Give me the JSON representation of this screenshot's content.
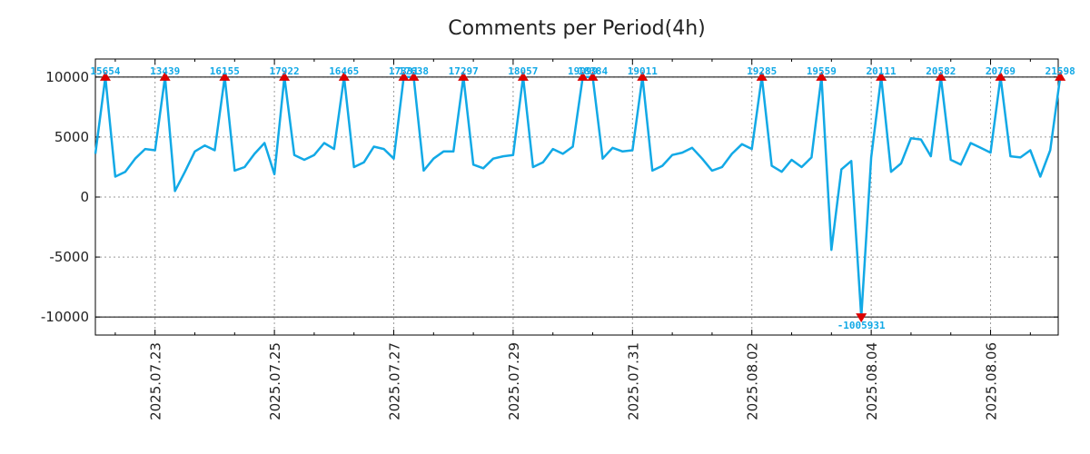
{
  "colors": {
    "line": "#12a9e6",
    "marker": "#dd0000",
    "label": "#12a9e6",
    "grid": "#9a9a9a",
    "axis": "#000000"
  },
  "chart_data": {
    "type": "line",
    "title": "Comments per Period(4h)",
    "xlabel": "",
    "ylabel": "",
    "ylim": [
      -11500,
      11500
    ],
    "xlim": [
      0,
      96.8
    ],
    "y_ticks": [
      {
        "value": 10000,
        "label": "10000"
      },
      {
        "value": 5000,
        "label": "5000"
      },
      {
        "value": 0,
        "label": "0"
      },
      {
        "value": -5000,
        "label": "-5000"
      },
      {
        "value": -10000,
        "label": "-10000"
      }
    ],
    "x_ticks": [
      {
        "index": 6,
        "label": "2025.07.23"
      },
      {
        "index": 18,
        "label": "2025.07.25"
      },
      {
        "index": 30,
        "label": "2025.07.27"
      },
      {
        "index": 42,
        "label": "2025.07.29"
      },
      {
        "index": 54,
        "label": "2025.07.31"
      },
      {
        "index": 66,
        "label": "2025.08.02"
      },
      {
        "index": 78,
        "label": "2025.08.04"
      },
      {
        "index": 90,
        "label": "2025.08.06"
      }
    ],
    "clip_lines": [
      10000,
      -10000
    ],
    "series": [
      {
        "name": "comments",
        "values": [
          3600,
          10000,
          1700,
          2100,
          3200,
          4000,
          3900,
          10000,
          500,
          2100,
          3800,
          4300,
          3900,
          10000,
          2200,
          2500,
          3600,
          4500,
          1900,
          10000,
          3500,
          3100,
          3500,
          4500,
          4000,
          10000,
          2500,
          2900,
          4200,
          4000,
          3200,
          10000,
          10000,
          2200,
          3200,
          3800,
          3800,
          10000,
          2700,
          2400,
          3200,
          3400,
          3500,
          10000,
          2500,
          2900,
          4000,
          3600,
          4200,
          10000,
          10000,
          3200,
          4100,
          3800,
          3900,
          10000,
          2200,
          2600,
          3500,
          3700,
          4100,
          3200,
          2200,
          2500,
          3600,
          4400,
          4000,
          10000,
          2600,
          2100,
          3100,
          2500,
          3300,
          10000,
          -4400,
          2300,
          3000,
          -10000,
          3300,
          10000,
          2100,
          2800,
          4900,
          4800,
          3400,
          10000,
          3100,
          2700,
          4500,
          4100,
          3700,
          10000,
          3400,
          3300,
          3900,
          1700,
          3900,
          10000
        ]
      }
    ],
    "peak_labels": [
      {
        "index": 1,
        "label": "15654"
      },
      {
        "index": 7,
        "label": "13439"
      },
      {
        "index": 13,
        "label": "16155"
      },
      {
        "index": 19,
        "label": "17922"
      },
      {
        "index": 25,
        "label": "16465"
      },
      {
        "index": 31,
        "label": "17331"
      },
      {
        "index": 32,
        "label": "17638"
      },
      {
        "index": 37,
        "label": "17297"
      },
      {
        "index": 43,
        "label": "18057"
      },
      {
        "index": 49,
        "label": "19099"
      },
      {
        "index": 50,
        "label": "18384"
      },
      {
        "index": 55,
        "label": "19011"
      },
      {
        "index": 67,
        "label": "19285"
      },
      {
        "index": 73,
        "label": "19559"
      },
      {
        "index": 79,
        "label": "20111"
      },
      {
        "index": 85,
        "label": "20582"
      },
      {
        "index": 91,
        "label": "20769"
      },
      {
        "index": 97,
        "label": "21598"
      }
    ],
    "trough_labels": [
      {
        "index": 77,
        "label": "-1005931"
      }
    ]
  }
}
